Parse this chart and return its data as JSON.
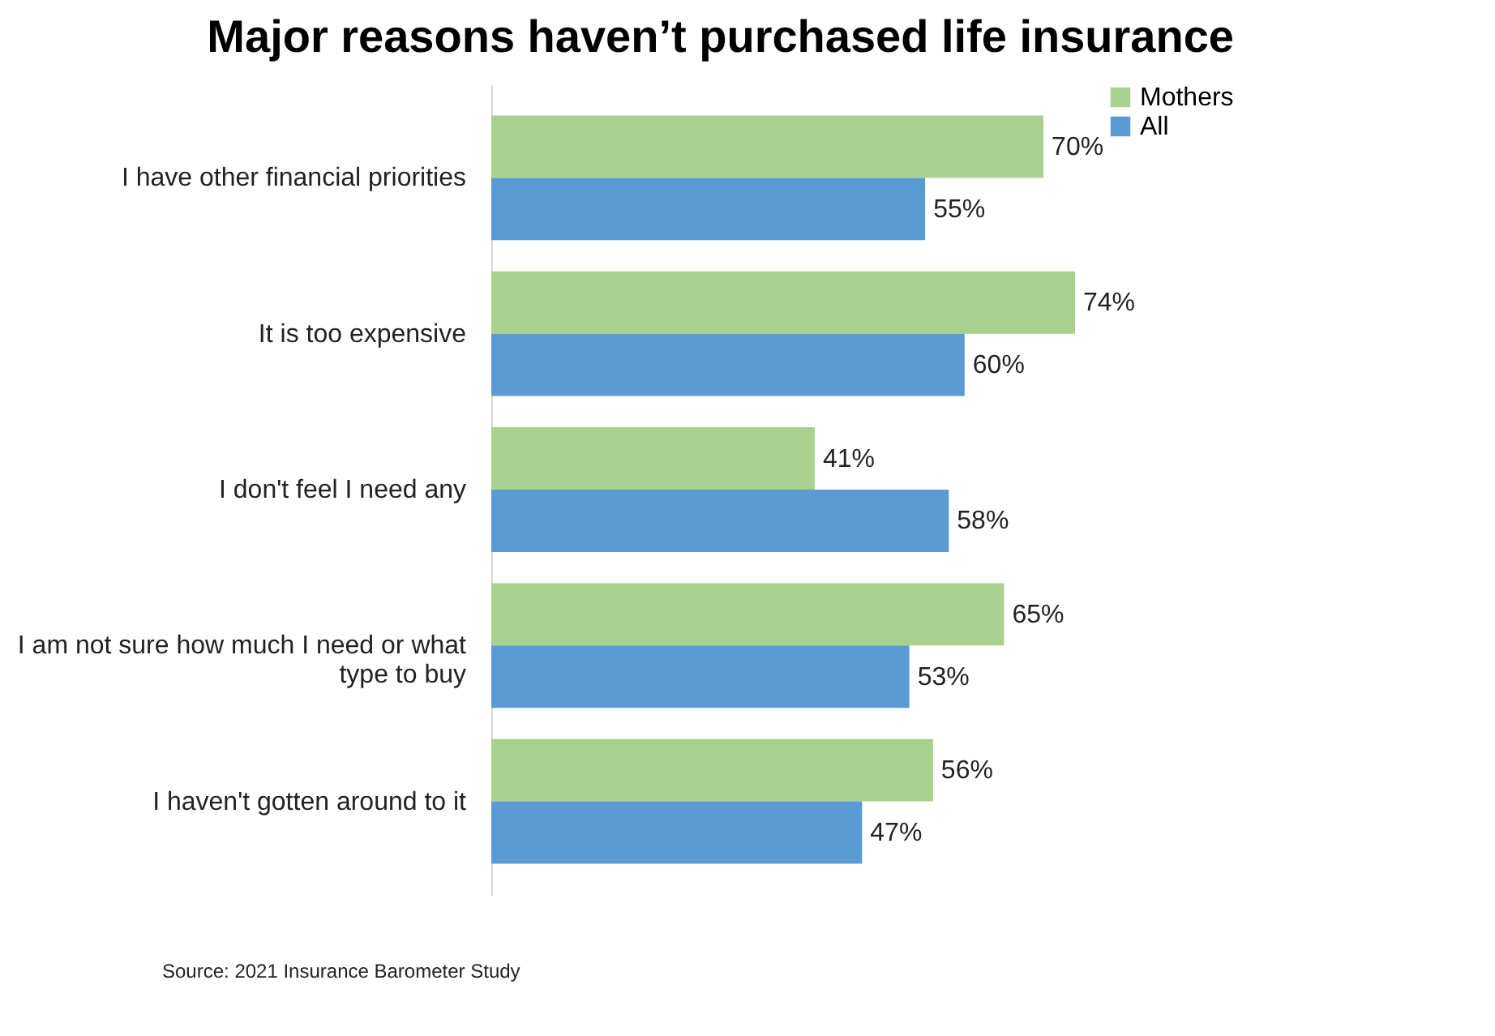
{
  "chart_data": {
    "type": "bar",
    "orientation": "horizontal",
    "title": "Major reasons haven’t purchased life insurance",
    "categories": [
      "I have other financial priorities",
      "It is too expensive",
      "I don't feel I need any",
      "I am not sure how much I need or what type to buy",
      "I haven't gotten around to it"
    ],
    "series": [
      {
        "name": "Mothers",
        "color": "#a9d18e",
        "values": [
          70,
          74,
          41,
          65,
          56
        ],
        "value_labels": [
          "70%",
          "74%",
          "41%",
          "65%",
          "56%"
        ]
      },
      {
        "name": "All",
        "color": "#5b9bd5",
        "values": [
          55,
          60,
          58,
          53,
          47
        ],
        "value_labels": [
          "55%",
          "60%",
          "58%",
          "53%",
          "47%"
        ]
      }
    ],
    "legend": "right",
    "grid": false,
    "annotations": [
      "Source: 2021 Insurance Barometer Study"
    ]
  }
}
